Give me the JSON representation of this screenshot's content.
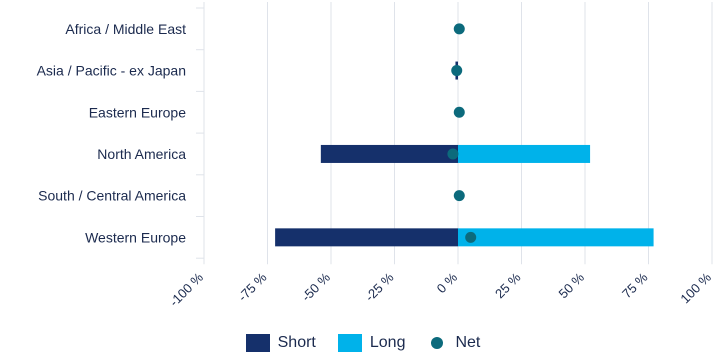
{
  "chart_data": {
    "type": "bar",
    "orientation": "horizontal",
    "stacked": true,
    "categories": [
      "Africa / Middle East",
      "Asia / Pacific - ex Japan",
      "Eastern Europe",
      "North America",
      "South / Central America",
      "Western Europe"
    ],
    "series": [
      {
        "name": "Short",
        "type": "bar",
        "color": "#15306b",
        "values": [
          0,
          -1,
          0,
          -54,
          0,
          -72
        ]
      },
      {
        "name": "Long",
        "type": "bar",
        "color": "#00b2ea",
        "values": [
          0,
          0,
          0,
          52,
          0,
          77
        ]
      },
      {
        "name": "Net",
        "type": "point",
        "color": "#0c6a7c",
        "values": [
          0.5,
          -0.5,
          0.5,
          -2,
          0.5,
          5
        ]
      }
    ],
    "xlim": [
      -100,
      100
    ],
    "xticks": [
      -100,
      -75,
      -50,
      -25,
      0,
      25,
      50,
      75,
      100
    ],
    "xtick_labels": [
      "-100 %",
      "-75 %",
      "-50 %",
      "-25 %",
      "0 %",
      "25 %",
      "50 %",
      "75 %",
      "100 %"
    ],
    "grid": "vertical",
    "legend_position": "bottom-center",
    "title": "",
    "xlabel": "",
    "ylabel": ""
  }
}
